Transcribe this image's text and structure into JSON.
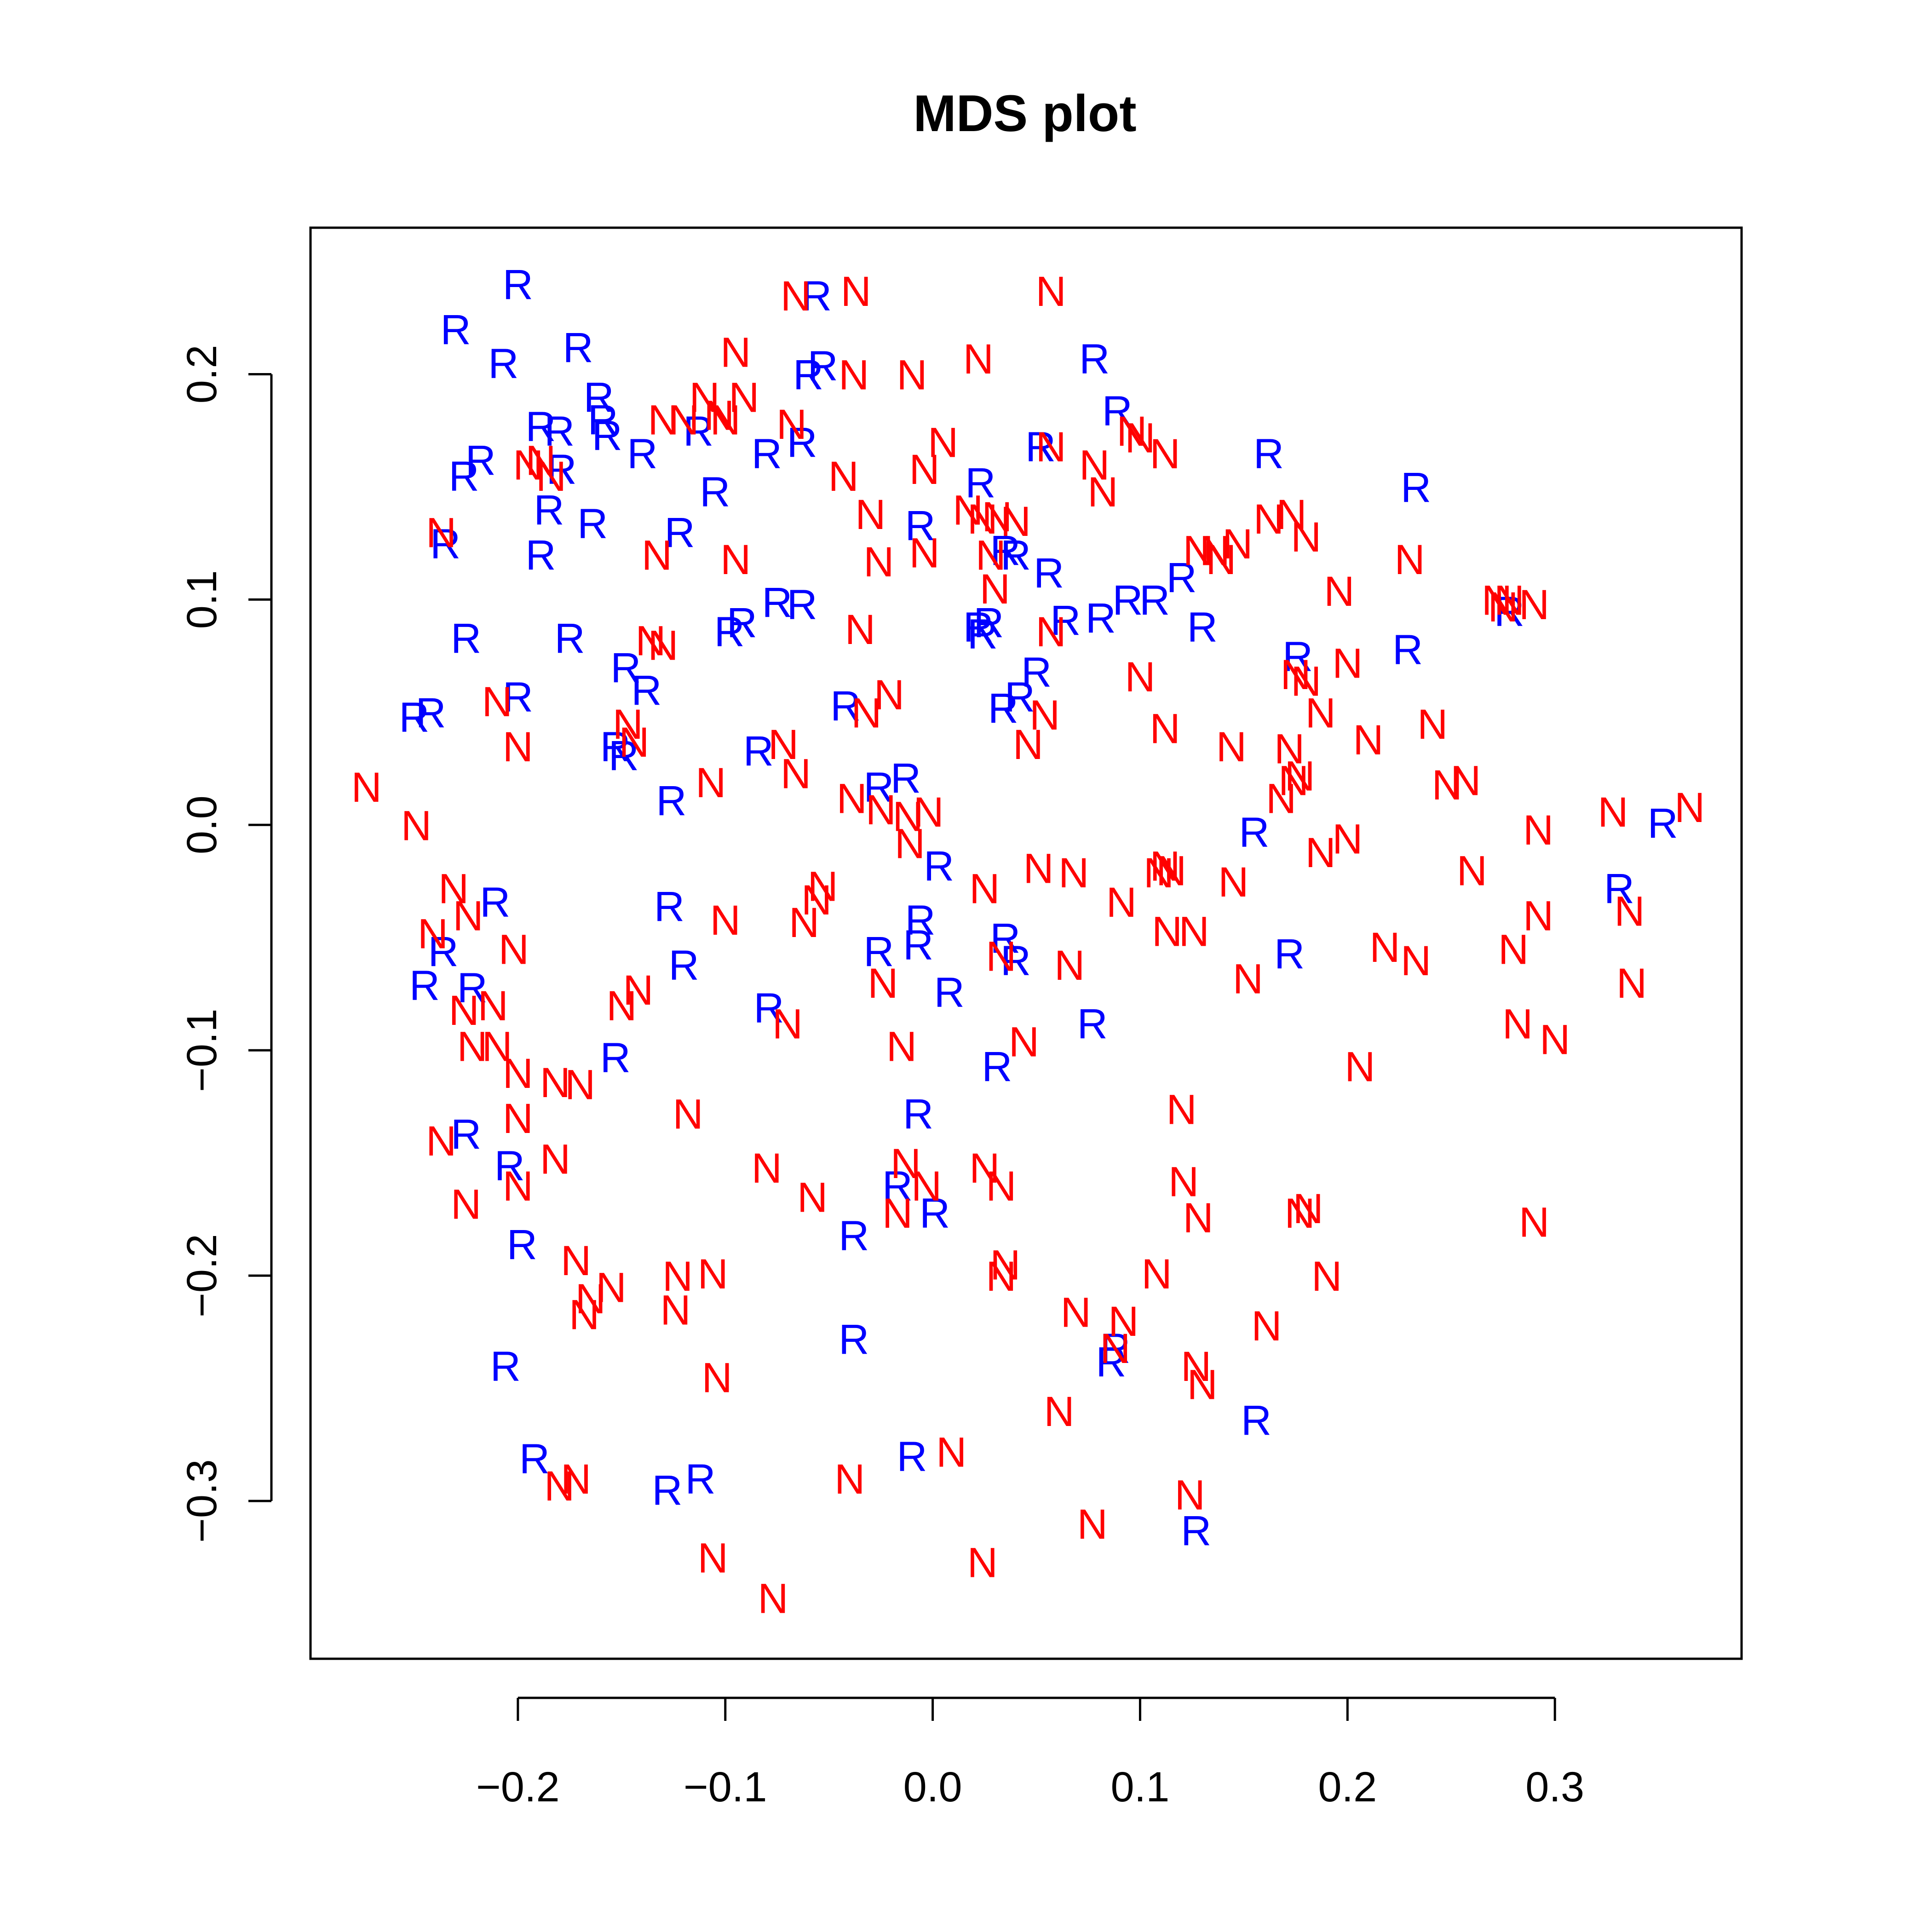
{
  "chart_data": {
    "type": "scatter",
    "title": "MDS plot",
    "xlabel": "",
    "ylabel": "",
    "xlim": [
      -0.3,
      0.39
    ],
    "ylim": [
      -0.37,
      0.265
    ],
    "grid": false,
    "x_ticks": [
      "−0.2",
      "−0.1",
      "0.0",
      "0.1",
      "0.2",
      "0.3"
    ],
    "y_ticks": [
      "−0.3",
      "−0.2",
      "−0.1",
      "0.0",
      "0.1",
      "0.2"
    ],
    "colors": {
      "N": "#ff0000",
      "R": "#0000ff"
    },
    "series": [
      {
        "label": "R",
        "points": [
          [
            -0.2,
            0.24
          ],
          [
            -0.23,
            0.22
          ],
          [
            -0.207,
            0.205
          ],
          [
            -0.171,
            0.212
          ],
          [
            -0.161,
            0.19
          ],
          [
            -0.159,
            0.18
          ],
          [
            -0.157,
            0.173
          ],
          [
            -0.18,
            0.175
          ],
          [
            -0.189,
            0.177
          ],
          [
            -0.218,
            0.162
          ],
          [
            -0.226,
            0.155
          ],
          [
            -0.179,
            0.158
          ],
          [
            -0.14,
            0.165
          ],
          [
            -0.113,
            0.175
          ],
          [
            -0.08,
            0.165
          ],
          [
            -0.063,
            0.17
          ],
          [
            -0.105,
            0.148
          ],
          [
            -0.185,
            0.14
          ],
          [
            -0.164,
            0.134
          ],
          [
            -0.189,
            0.12
          ],
          [
            -0.122,
            0.13
          ],
          [
            -0.235,
            0.125
          ],
          [
            -0.06,
            0.2
          ],
          [
            -0.053,
            0.204
          ],
          [
            -0.056,
            0.235
          ],
          [
            0.078,
            0.207
          ],
          [
            0.089,
            0.184
          ],
          [
            0.162,
            0.165
          ],
          [
            0.233,
            0.15
          ],
          [
            0.052,
            0.168
          ],
          [
            0.023,
            0.152
          ],
          [
            -0.006,
            0.133
          ],
          [
            0.035,
            0.122
          ],
          [
            0.04,
            0.12
          ],
          [
            0.056,
            0.112
          ],
          [
            0.094,
            0.1
          ],
          [
            0.107,
            0.1
          ],
          [
            0.12,
            0.11
          ],
          [
            0.13,
            0.088
          ],
          [
            0.081,
            0.092
          ],
          [
            0.064,
            0.091
          ],
          [
            0.022,
            0.088
          ],
          [
            0.027,
            0.09
          ],
          [
            0.024,
            0.085
          ],
          [
            -0.075,
            0.099
          ],
          [
            -0.063,
            0.098
          ],
          [
            -0.092,
            0.09
          ],
          [
            -0.098,
            0.086
          ],
          [
            -0.225,
            0.083
          ],
          [
            -0.175,
            0.083
          ],
          [
            -0.148,
            0.07
          ],
          [
            -0.138,
            0.06
          ],
          [
            -0.25,
            0.048
          ],
          [
            -0.242,
            0.05
          ],
          [
            -0.2,
            0.057
          ],
          [
            -0.153,
            0.035
          ],
          [
            -0.149,
            0.031
          ],
          [
            -0.126,
            0.011
          ],
          [
            -0.084,
            0.033
          ],
          [
            -0.042,
            0.053
          ],
          [
            -0.026,
            0.017
          ],
          [
            -0.013,
            0.021
          ],
          [
            0.003,
            -0.018
          ],
          [
            0.05,
            0.068
          ],
          [
            0.042,
            0.057
          ],
          [
            0.034,
            0.052
          ],
          [
            0.176,
            0.075
          ],
          [
            0.229,
            0.078
          ],
          [
            0.278,
            0.095
          ],
          [
            0.155,
            -0.003
          ],
          [
            0.352,
            0.001
          ],
          [
            0.331,
            -0.028
          ],
          [
            0.172,
            -0.057
          ],
          [
            0.077,
            -0.088
          ],
          [
            0.031,
            -0.107
          ],
          [
            0.04,
            -0.06
          ],
          [
            0.035,
            -0.05
          ],
          [
            0.008,
            -0.074
          ],
          [
            -0.006,
            -0.042
          ],
          [
            -0.007,
            -0.053
          ],
          [
            -0.026,
            -0.056
          ],
          [
            -0.079,
            -0.081
          ],
          [
            -0.127,
            -0.036
          ],
          [
            -0.12,
            -0.062
          ],
          [
            -0.211,
            -0.034
          ],
          [
            -0.236,
            -0.056
          ],
          [
            -0.245,
            -0.071
          ],
          [
            -0.222,
            -0.072
          ],
          [
            -0.153,
            -0.103
          ],
          [
            -0.225,
            -0.137
          ],
          [
            -0.204,
            -0.151
          ],
          [
            -0.198,
            -0.186
          ],
          [
            -0.206,
            -0.24
          ],
          [
            -0.192,
            -0.281
          ],
          [
            -0.128,
            -0.295
          ],
          [
            -0.112,
            -0.29
          ],
          [
            -0.038,
            -0.182
          ],
          [
            -0.038,
            -0.228
          ],
          [
            -0.017,
            -0.16
          ],
          [
            -0.007,
            -0.128
          ],
          [
            0.001,
            -0.172
          ],
          [
            -0.01,
            -0.28
          ],
          [
            0.086,
            -0.238
          ],
          [
            0.088,
            -0.232
          ],
          [
            0.156,
            -0.264
          ],
          [
            0.127,
            -0.313
          ]
        ]
      },
      {
        "label": "N",
        "points": [
          [
            -0.066,
            0.235
          ],
          [
            -0.037,
            0.237
          ],
          [
            0.057,
            0.237
          ],
          [
            -0.095,
            0.21
          ],
          [
            -0.038,
            0.2
          ],
          [
            -0.01,
            0.2
          ],
          [
            0.022,
            0.207
          ],
          [
            -0.091,
            0.19
          ],
          [
            -0.11,
            0.19
          ],
          [
            -0.13,
            0.18
          ],
          [
            -0.1,
            0.18
          ],
          [
            -0.068,
            0.178
          ],
          [
            -0.195,
            0.16
          ],
          [
            -0.189,
            0.162
          ],
          [
            -0.184,
            0.155
          ],
          [
            -0.103,
            0.182
          ],
          [
            -0.12,
            0.18
          ],
          [
            0.005,
            0.17
          ],
          [
            -0.004,
            0.158
          ],
          [
            -0.043,
            0.155
          ],
          [
            -0.03,
            0.138
          ],
          [
            0.017,
            0.14
          ],
          [
            0.024,
            0.136
          ],
          [
            0.031,
            0.137
          ],
          [
            0.04,
            0.135
          ],
          [
            0.057,
            0.168
          ],
          [
            0.078,
            0.16
          ],
          [
            0.082,
            0.148
          ],
          [
            0.096,
            0.175
          ],
          [
            0.1,
            0.172
          ],
          [
            0.112,
            0.165
          ],
          [
            -0.237,
            0.13
          ],
          [
            -0.133,
            0.12
          ],
          [
            -0.095,
            0.118
          ],
          [
            -0.026,
            0.117
          ],
          [
            -0.004,
            0.121
          ],
          [
            0.028,
            0.12
          ],
          [
            0.03,
            0.105
          ],
          [
            0.128,
            0.122
          ],
          [
            0.139,
            0.118
          ],
          [
            0.136,
            0.122
          ],
          [
            0.147,
            0.125
          ],
          [
            0.162,
            0.136
          ],
          [
            0.173,
            0.138
          ],
          [
            0.18,
            0.128
          ],
          [
            0.196,
            0.104
          ],
          [
            0.23,
            0.118
          ],
          [
            0.272,
            0.1
          ],
          [
            0.278,
            0.1
          ],
          [
            0.29,
            0.098
          ],
          [
            0.275,
            0.097
          ],
          [
            -0.136,
            0.082
          ],
          [
            -0.13,
            0.08
          ],
          [
            -0.035,
            0.087
          ],
          [
            0.057,
            0.086
          ],
          [
            0.1,
            0.066
          ],
          [
            0.175,
            0.067
          ],
          [
            0.18,
            0.064
          ],
          [
            0.2,
            0.072
          ],
          [
            0.187,
            0.05
          ],
          [
            0.21,
            0.038
          ],
          [
            0.241,
            0.045
          ],
          [
            0.257,
            0.02
          ],
          [
            0.248,
            0.018
          ],
          [
            0.172,
            0.034
          ],
          [
            0.174,
            0.02
          ],
          [
            0.177,
            0.022
          ],
          [
            0.144,
            0.035
          ],
          [
            0.112,
            0.043
          ],
          [
            0.054,
            0.049
          ],
          [
            0.046,
            0.036
          ],
          [
            -0.021,
            0.058
          ],
          [
            -0.032,
            0.05
          ],
          [
            -0.147,
            0.045
          ],
          [
            -0.144,
            0.037
          ],
          [
            -0.21,
            0.055
          ],
          [
            -0.2,
            0.035
          ],
          [
            -0.273,
            0.017
          ],
          [
            -0.249,
            0.0
          ],
          [
            -0.107,
            0.019
          ],
          [
            -0.072,
            0.036
          ],
          [
            -0.066,
            0.023
          ],
          [
            -0.039,
            0.012
          ],
          [
            -0.025,
            0.007
          ],
          [
            -0.012,
            0.004
          ],
          [
            -0.002,
            0.006
          ],
          [
            -0.011,
            -0.008
          ],
          [
            0.168,
            0.012
          ],
          [
            0.187,
            -0.012
          ],
          [
            0.2,
            -0.006
          ],
          [
            0.292,
            -0.002
          ],
          [
            0.328,
            0.006
          ],
          [
            0.365,
            0.008
          ],
          [
            0.26,
            -0.02
          ],
          [
            0.145,
            -0.025
          ],
          [
            0.109,
            -0.021
          ],
          [
            0.112,
            -0.018
          ],
          [
            0.115,
            -0.02
          ],
          [
            0.051,
            -0.019
          ],
          [
            0.068,
            -0.021
          ],
          [
            0.091,
            -0.034
          ],
          [
            0.025,
            -0.028
          ],
          [
            -0.053,
            -0.027
          ],
          [
            -0.056,
            -0.033
          ],
          [
            -0.062,
            -0.043
          ],
          [
            -0.1,
            -0.042
          ],
          [
            -0.231,
            -0.028
          ],
          [
            -0.224,
            -0.04
          ],
          [
            -0.241,
            -0.048
          ],
          [
            -0.202,
            -0.055
          ],
          [
            -0.142,
            -0.073
          ],
          [
            -0.15,
            -0.08
          ],
          [
            -0.226,
            -0.082
          ],
          [
            -0.212,
            -0.08
          ],
          [
            -0.222,
            -0.098
          ],
          [
            -0.21,
            -0.098
          ],
          [
            -0.2,
            -0.11
          ],
          [
            -0.182,
            -0.114
          ],
          [
            -0.17,
            -0.115
          ],
          [
            -0.237,
            -0.14
          ],
          [
            -0.2,
            -0.16
          ],
          [
            -0.182,
            -0.148
          ],
          [
            -0.2,
            -0.13
          ],
          [
            -0.225,
            -0.168
          ],
          [
            -0.118,
            -0.128
          ],
          [
            -0.08,
            -0.152
          ],
          [
            -0.058,
            -0.165
          ],
          [
            -0.07,
            -0.088
          ],
          [
            -0.024,
            -0.07
          ],
          [
            -0.015,
            -0.098
          ],
          [
            0.033,
            -0.058
          ],
          [
            0.044,
            -0.096
          ],
          [
            0.066,
            -0.062
          ],
          [
            0.113,
            -0.047
          ],
          [
            0.126,
            -0.047
          ],
          [
            0.152,
            -0.068
          ],
          [
            0.218,
            -0.054
          ],
          [
            0.233,
            -0.06
          ],
          [
            0.28,
            -0.055
          ],
          [
            0.292,
            -0.04
          ],
          [
            0.336,
            -0.038
          ],
          [
            0.337,
            -0.07
          ],
          [
            0.282,
            -0.088
          ],
          [
            0.3,
            -0.095
          ],
          [
            0.206,
            -0.107
          ],
          [
            0.12,
            -0.126
          ],
          [
            0.121,
            -0.158
          ],
          [
            0.128,
            -0.174
          ],
          [
            0.177,
            -0.172
          ],
          [
            0.181,
            -0.17
          ],
          [
            0.19,
            -0.2
          ],
          [
            0.29,
            -0.176
          ],
          [
            0.108,
            -0.199
          ],
          [
            0.161,
            -0.222
          ],
          [
            0.127,
            -0.24
          ],
          [
            0.13,
            -0.248
          ],
          [
            0.124,
            -0.297
          ],
          [
            0.077,
            -0.31
          ],
          [
            0.092,
            -0.22
          ],
          [
            0.088,
            -0.232
          ],
          [
            0.069,
            -0.216
          ],
          [
            0.061,
            -0.26
          ],
          [
            0.033,
            -0.2
          ],
          [
            0.035,
            -0.195
          ],
          [
            0.033,
            -0.16
          ],
          [
            0.025,
            -0.152
          ],
          [
            -0.013,
            -0.15
          ],
          [
            -0.003,
            -0.16
          ],
          [
            -0.017,
            -0.172
          ],
          [
            -0.172,
            -0.193
          ],
          [
            -0.165,
            -0.21
          ],
          [
            -0.155,
            -0.205
          ],
          [
            -0.168,
            -0.217
          ],
          [
            -0.123,
            -0.2
          ],
          [
            -0.106,
            -0.199
          ],
          [
            -0.124,
            -0.215
          ],
          [
            -0.104,
            -0.245
          ],
          [
            -0.04,
            -0.29
          ],
          [
            0.009,
            -0.278
          ],
          [
            -0.18,
            -0.293
          ],
          [
            -0.172,
            -0.29
          ],
          [
            -0.106,
            -0.325
          ],
          [
            -0.077,
            -0.343
          ],
          [
            0.024,
            -0.327
          ]
        ]
      }
    ]
  }
}
